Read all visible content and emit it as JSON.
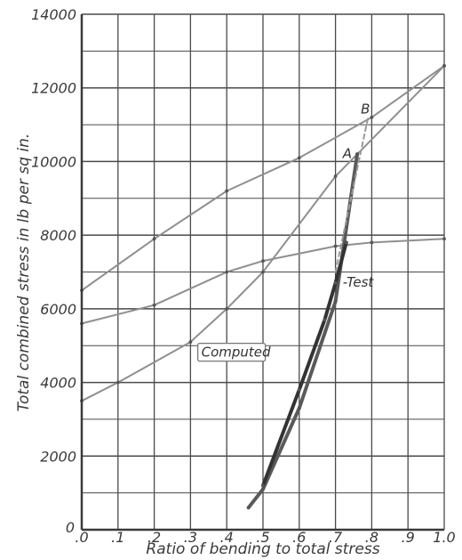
{
  "chart_data": {
    "type": "line",
    "title": "",
    "xlabel": "Ratio of bending to total stress",
    "ylabel": "Total combined stress in lb per sq in.",
    "xlim": [
      0,
      1.0
    ],
    "ylim": [
      0,
      14000
    ],
    "grid": true,
    "x_ticks": [
      ".0",
      ".1",
      ".2",
      ".3",
      ".4",
      ".5",
      ".6",
      ".7",
      ".8",
      ".9",
      "1.0"
    ],
    "y_ticks": [
      "0",
      "2000",
      "4000",
      "6000",
      "8000",
      "10000",
      "12000",
      "14000"
    ],
    "corner_label": "0",
    "series": [
      {
        "color": "#8f8f8f",
        "x": [
          0,
          0.2,
          0.4,
          0.6,
          0.8,
          1.0
        ],
        "y": [
          6500,
          7900,
          9200,
          10100,
          11200,
          12600
        ]
      },
      {
        "color": "#8f8f8f",
        "x": [
          0,
          0.2,
          0.4,
          0.5,
          0.7,
          0.8,
          1.0
        ],
        "y": [
          5600,
          6100,
          7000,
          7300,
          7700,
          7800,
          7900
        ]
      },
      {
        "color": "#8f8f8f",
        "x": [
          0,
          0.1,
          0.3,
          0.4,
          0.5,
          0.7,
          0.76,
          1.0
        ],
        "y": [
          3500,
          4000,
          5100,
          6000,
          7000,
          9600,
          10200,
          12600
        ]
      },
      {
        "name": "Computed",
        "color": "#5a5a5a",
        "x": [
          0.46,
          0.5,
          0.6,
          0.7,
          0.76
        ],
        "y": [
          600,
          1100,
          3300,
          6200,
          10200
        ]
      },
      {
        "name": "Test",
        "color": "#333333",
        "x": [
          0.5,
          0.6,
          0.67,
          0.7,
          0.73
        ],
        "y": [
          1200,
          3800,
          5700,
          6700,
          7800
        ]
      },
      {
        "color": "#9a9a9a",
        "dashed": true,
        "x": [
          0.7,
          0.79
        ],
        "y": [
          7000,
          11200
        ]
      }
    ],
    "annotations": [
      {
        "text": "B",
        "x": 0.77,
        "y": 11300
      },
      {
        "text": "A",
        "x": 0.72,
        "y": 10100
      },
      {
        "text": "-Test",
        "x": 0.72,
        "y": 6600
      },
      {
        "text": "Computed",
        "x": 0.33,
        "y": 4700
      }
    ]
  }
}
